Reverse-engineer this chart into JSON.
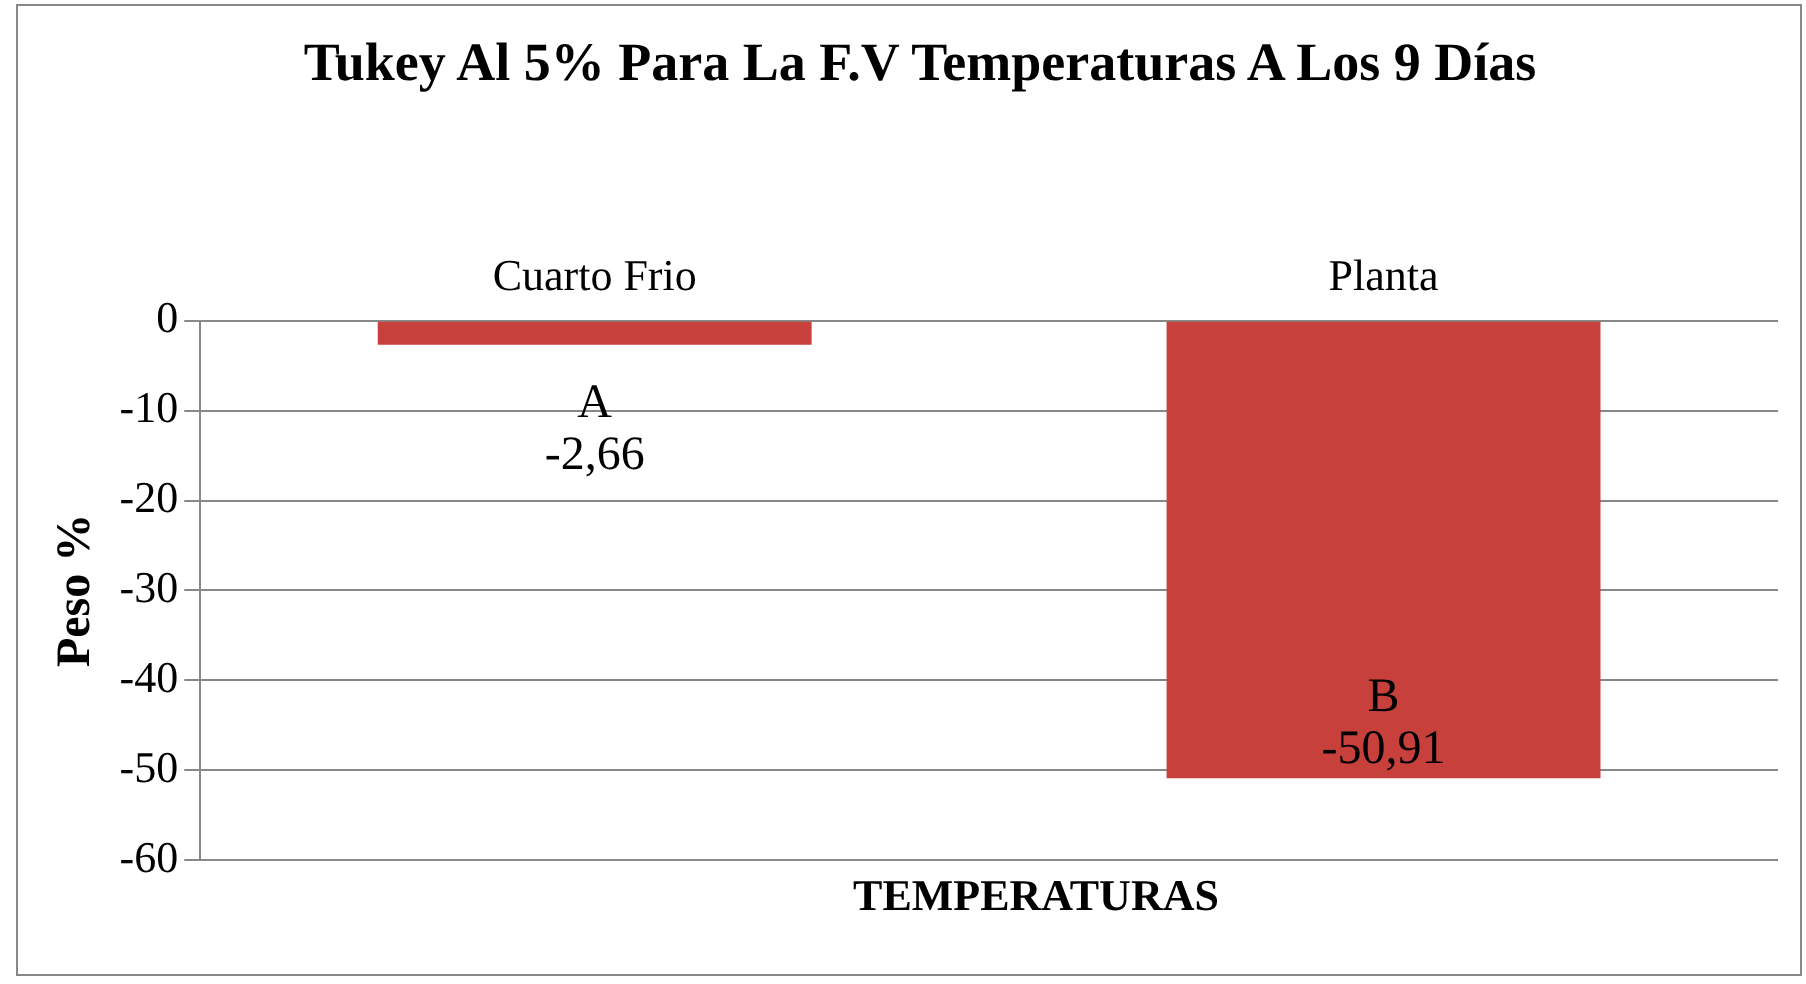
{
  "chart_data": {
    "type": "bar",
    "title": "Tukey Al 5% Para La F.V Temperaturas A Los 9 Días",
    "xlabel": "TEMPERATURAS",
    "ylabel": "Peso %",
    "categories": [
      "Cuarto Frio",
      "Planta"
    ],
    "values": [
      -2.66,
      -50.91
    ],
    "color": "#c8403b",
    "value_labels": [
      "A\n-2,66",
      "B\n-50,91"
    ],
    "ylim": [
      -60,
      0
    ],
    "yticks": [
      0,
      -10,
      -20,
      -30,
      -40,
      -50,
      -60
    ],
    "grid": "y",
    "legend": false
  }
}
